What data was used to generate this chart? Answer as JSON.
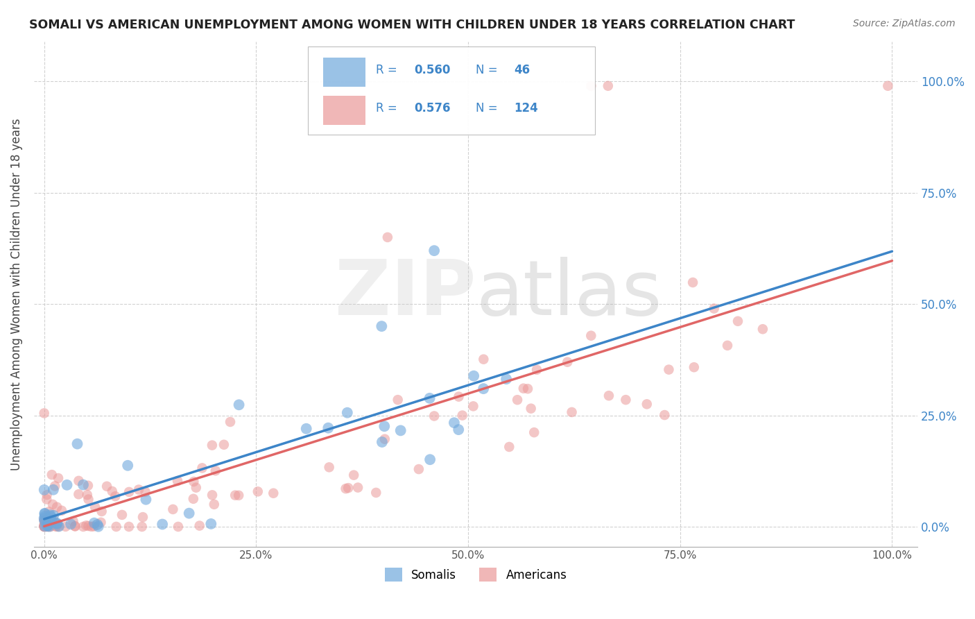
{
  "title": "SOMALI VS AMERICAN UNEMPLOYMENT AMONG WOMEN WITH CHILDREN UNDER 18 YEARS CORRELATION CHART",
  "source": "Source: ZipAtlas.com",
  "ylabel": "Unemployment Among Women with Children Under 18 years",
  "ytick_labels": [
    "0.0%",
    "25.0%",
    "50.0%",
    "75.0%",
    "100.0%"
  ],
  "xtick_labels": [
    "0.0%",
    "25.0%",
    "50.0%",
    "75.0%",
    "100.0%"
  ],
  "legend_bottom": [
    "Somalis",
    "Americans"
  ],
  "somali_R": "0.560",
  "somali_N": "46",
  "american_R": "0.576",
  "american_N": "124",
  "somali_color": "#6fa8dc",
  "american_color": "#ea9999",
  "american_line_color": "#e06666",
  "somali_line_color": "#3d85c8",
  "somali_dash_color": "#a0c4e8",
  "blue_text_color": "#3d85c8",
  "background_color": "#ffffff",
  "grid_color": "#cccccc",
  "title_color": "#222222",
  "source_color": "#777777",
  "ylabel_color": "#444444"
}
